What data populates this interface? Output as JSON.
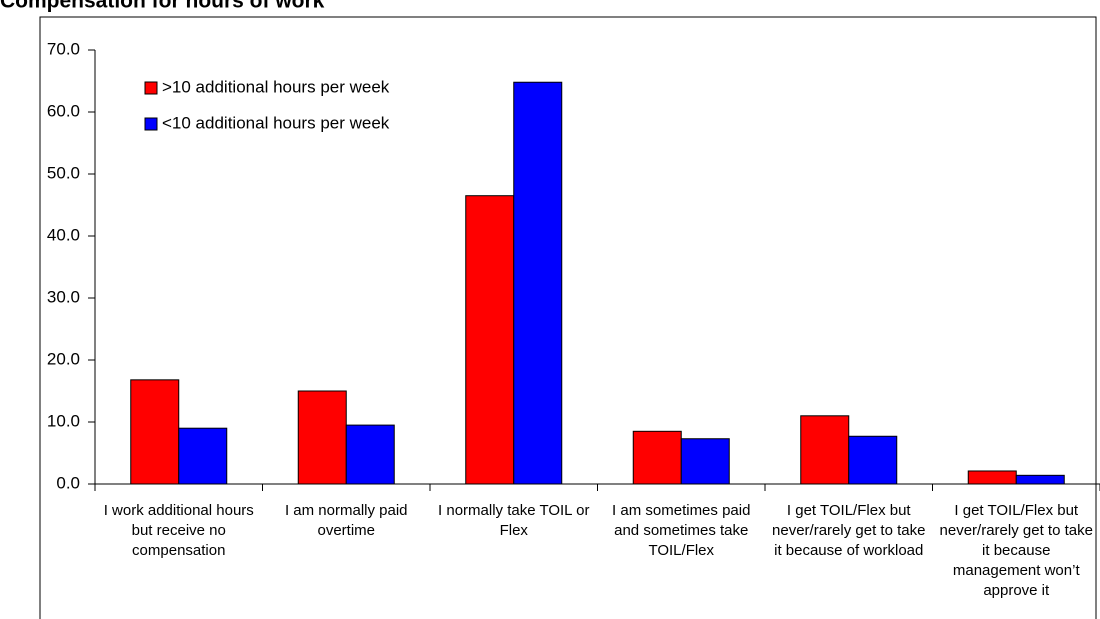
{
  "chart_data": {
    "type": "bar",
    "title": "Compensation for hours of work",
    "categories": [
      "I work additional hours but receive no compensation",
      "I am normally paid overtime",
      "I normally take TOIL or Flex",
      "I am sometimes paid and sometimes take TOIL/Flex",
      "I get TOIL/Flex but never/rarely get to take it because of workload",
      "I get TOIL/Flex but never/rarely get to take it because management won’t approve it"
    ],
    "series": [
      {
        "name": ">10 additional hours per week",
        "color": "#ff0000",
        "values": [
          16.8,
          15.0,
          46.5,
          8.5,
          11.0,
          2.1
        ]
      },
      {
        "name": "<10 additional hours per week",
        "color": "#0000ff",
        "values": [
          9.0,
          9.5,
          64.8,
          7.3,
          7.7,
          1.4
        ]
      }
    ],
    "ylim": [
      0,
      70
    ],
    "yticks": [
      {
        "value": 0,
        "label": "0.0"
      },
      {
        "value": 10,
        "label": "10.0"
      },
      {
        "value": 20,
        "label": "20.0"
      },
      {
        "value": 30,
        "label": "30.0"
      },
      {
        "value": 40,
        "label": "40.0"
      },
      {
        "value": 50,
        "label": "50.0"
      },
      {
        "value": 60,
        "label": "60.0"
      },
      {
        "value": 70,
        "label": "70.0"
      }
    ],
    "legend": "upper-left"
  }
}
